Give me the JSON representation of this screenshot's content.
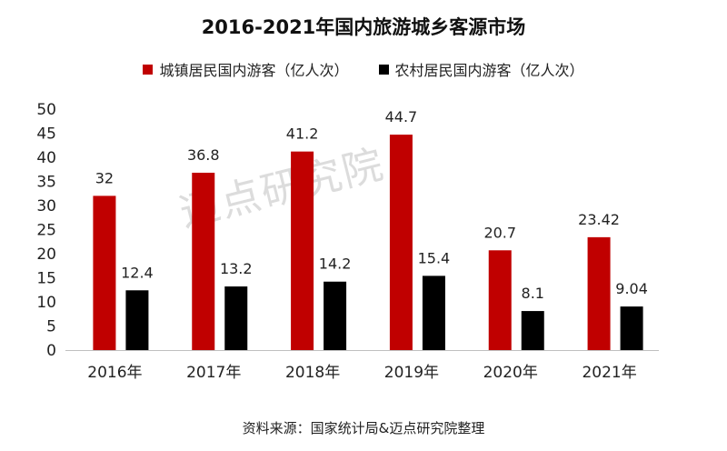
{
  "watermark": "迈点研究院",
  "chart_data": {
    "type": "bar",
    "title": "2016-2021年国内旅游城乡客源市场",
    "categories": [
      "2016年",
      "2017年",
      "2018年",
      "2019年",
      "2020年",
      "2021年"
    ],
    "series": [
      {
        "name": "城镇居民国内游客（亿人次）",
        "color": "#c00000",
        "values": [
          32,
          36.8,
          41.2,
          44.7,
          20.7,
          23.42
        ],
        "labels": [
          "32",
          "36.8",
          "41.2",
          "44.7",
          "20.7",
          "23.42"
        ]
      },
      {
        "name": "农村居民国内游客（亿人次）",
        "color": "#000000",
        "values": [
          12.4,
          13.2,
          14.2,
          15.4,
          8.1,
          9.04
        ],
        "labels": [
          "12.4",
          "13.2",
          "14.2",
          "15.4",
          "8.1",
          "9.04"
        ]
      }
    ],
    "ylim": [
      0,
      50
    ],
    "yticks": [
      0,
      5,
      10,
      15,
      20,
      25,
      30,
      35,
      40,
      45,
      50
    ],
    "xlabel": "",
    "ylabel": "",
    "legend": "top",
    "grid": false,
    "source": "资料来源：国家统计局&迈点研究院整理"
  }
}
